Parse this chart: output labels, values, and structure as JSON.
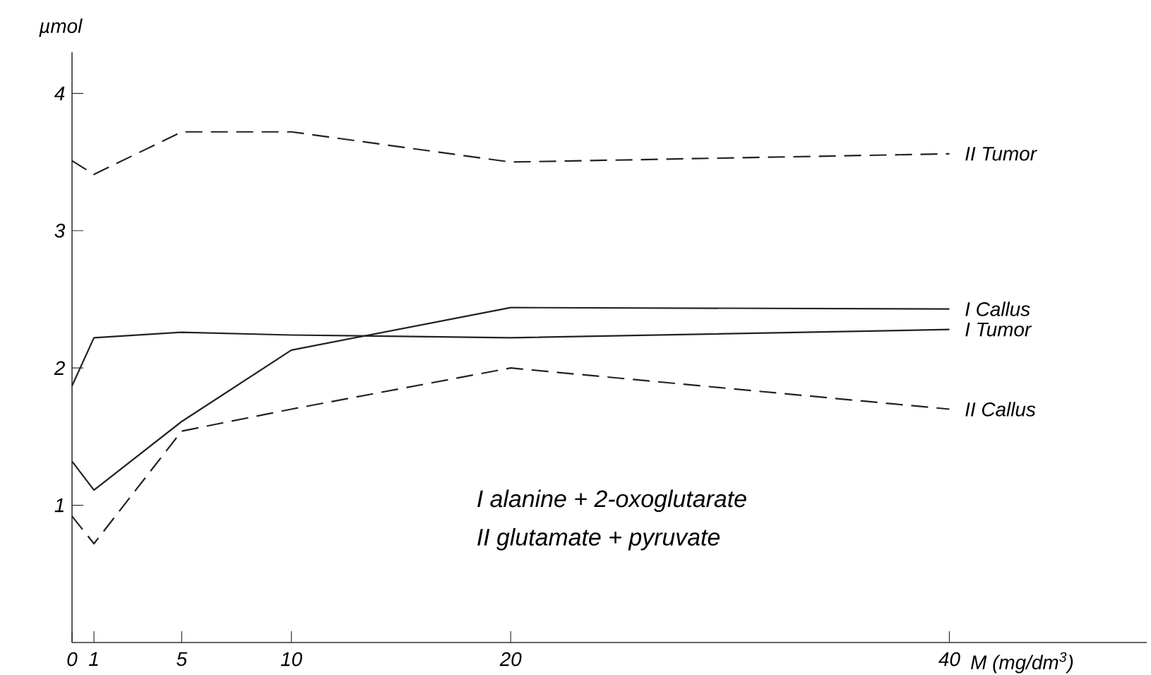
{
  "chart_data": {
    "type": "line",
    "ylabel": "µmol",
    "xlabel": "M (mg/dm$^{3}$)",
    "xlim": [
      0,
      49
    ],
    "ylim": [
      0,
      4.3
    ],
    "xticks": [
      0,
      1,
      5,
      10,
      20,
      40
    ],
    "yticks": [
      1,
      2,
      3,
      4
    ],
    "x": [
      0,
      1,
      5,
      10,
      20,
      40
    ],
    "series": [
      {
        "name": "II Tumor",
        "color": "#222222",
        "line_style": "dashed",
        "values": [
          3.51,
          3.41,
          3.72,
          3.72,
          3.5,
          3.56
        ]
      },
      {
        "name": "I Callus",
        "color": "#222222",
        "line_style": "solid",
        "values": [
          1.32,
          1.11,
          1.61,
          2.13,
          2.44,
          2.43
        ]
      },
      {
        "name": "I Tumor",
        "color": "#222222",
        "line_style": "solid",
        "values": [
          1.87,
          2.22,
          2.26,
          2.24,
          2.22,
          2.28
        ]
      },
      {
        "name": "II Callus",
        "color": "#222222",
        "line_style": "dashed",
        "values": [
          0.92,
          0.72,
          1.54,
          1.7,
          2.0,
          1.7
        ]
      }
    ],
    "annotations": [
      "I alanine + 2-oxoglutarate",
      "II glutamate + pyruvate"
    ]
  }
}
